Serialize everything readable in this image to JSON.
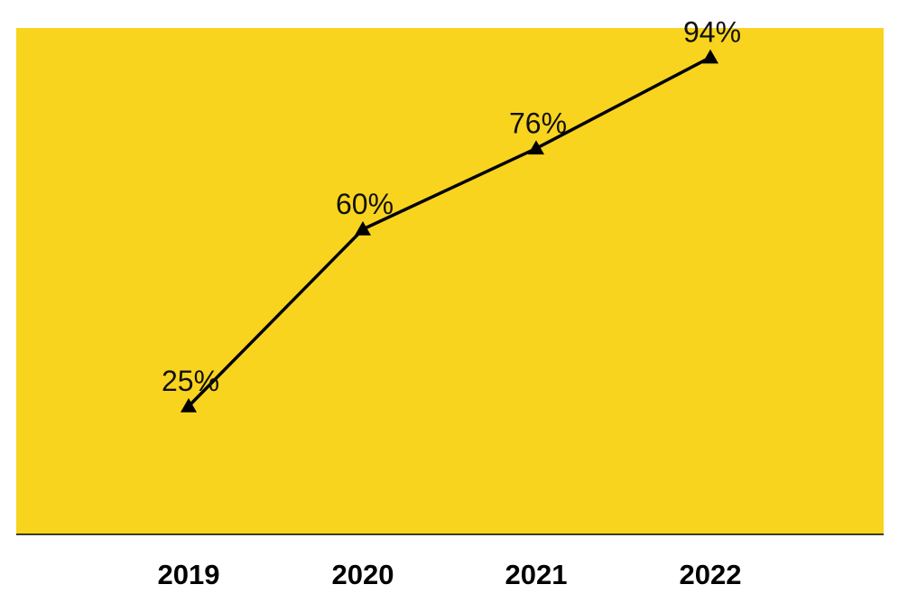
{
  "chart_data": {
    "type": "line",
    "categories": [
      "2019",
      "2020",
      "2021",
      "2022"
    ],
    "series": [
      {
        "values": [
          25,
          60,
          76,
          94
        ],
        "data_labels": [
          "25%",
          "60%",
          "76%",
          "94%"
        ],
        "marker": "triangle"
      }
    ],
    "title": "",
    "xlabel": "",
    "ylabel": "",
    "grid": false,
    "legend": "none"
  },
  "colors": {
    "plot_background": "#f9d41e",
    "line": "#000000",
    "marker": "#000000",
    "axis": "#000000",
    "text": "#111111"
  }
}
